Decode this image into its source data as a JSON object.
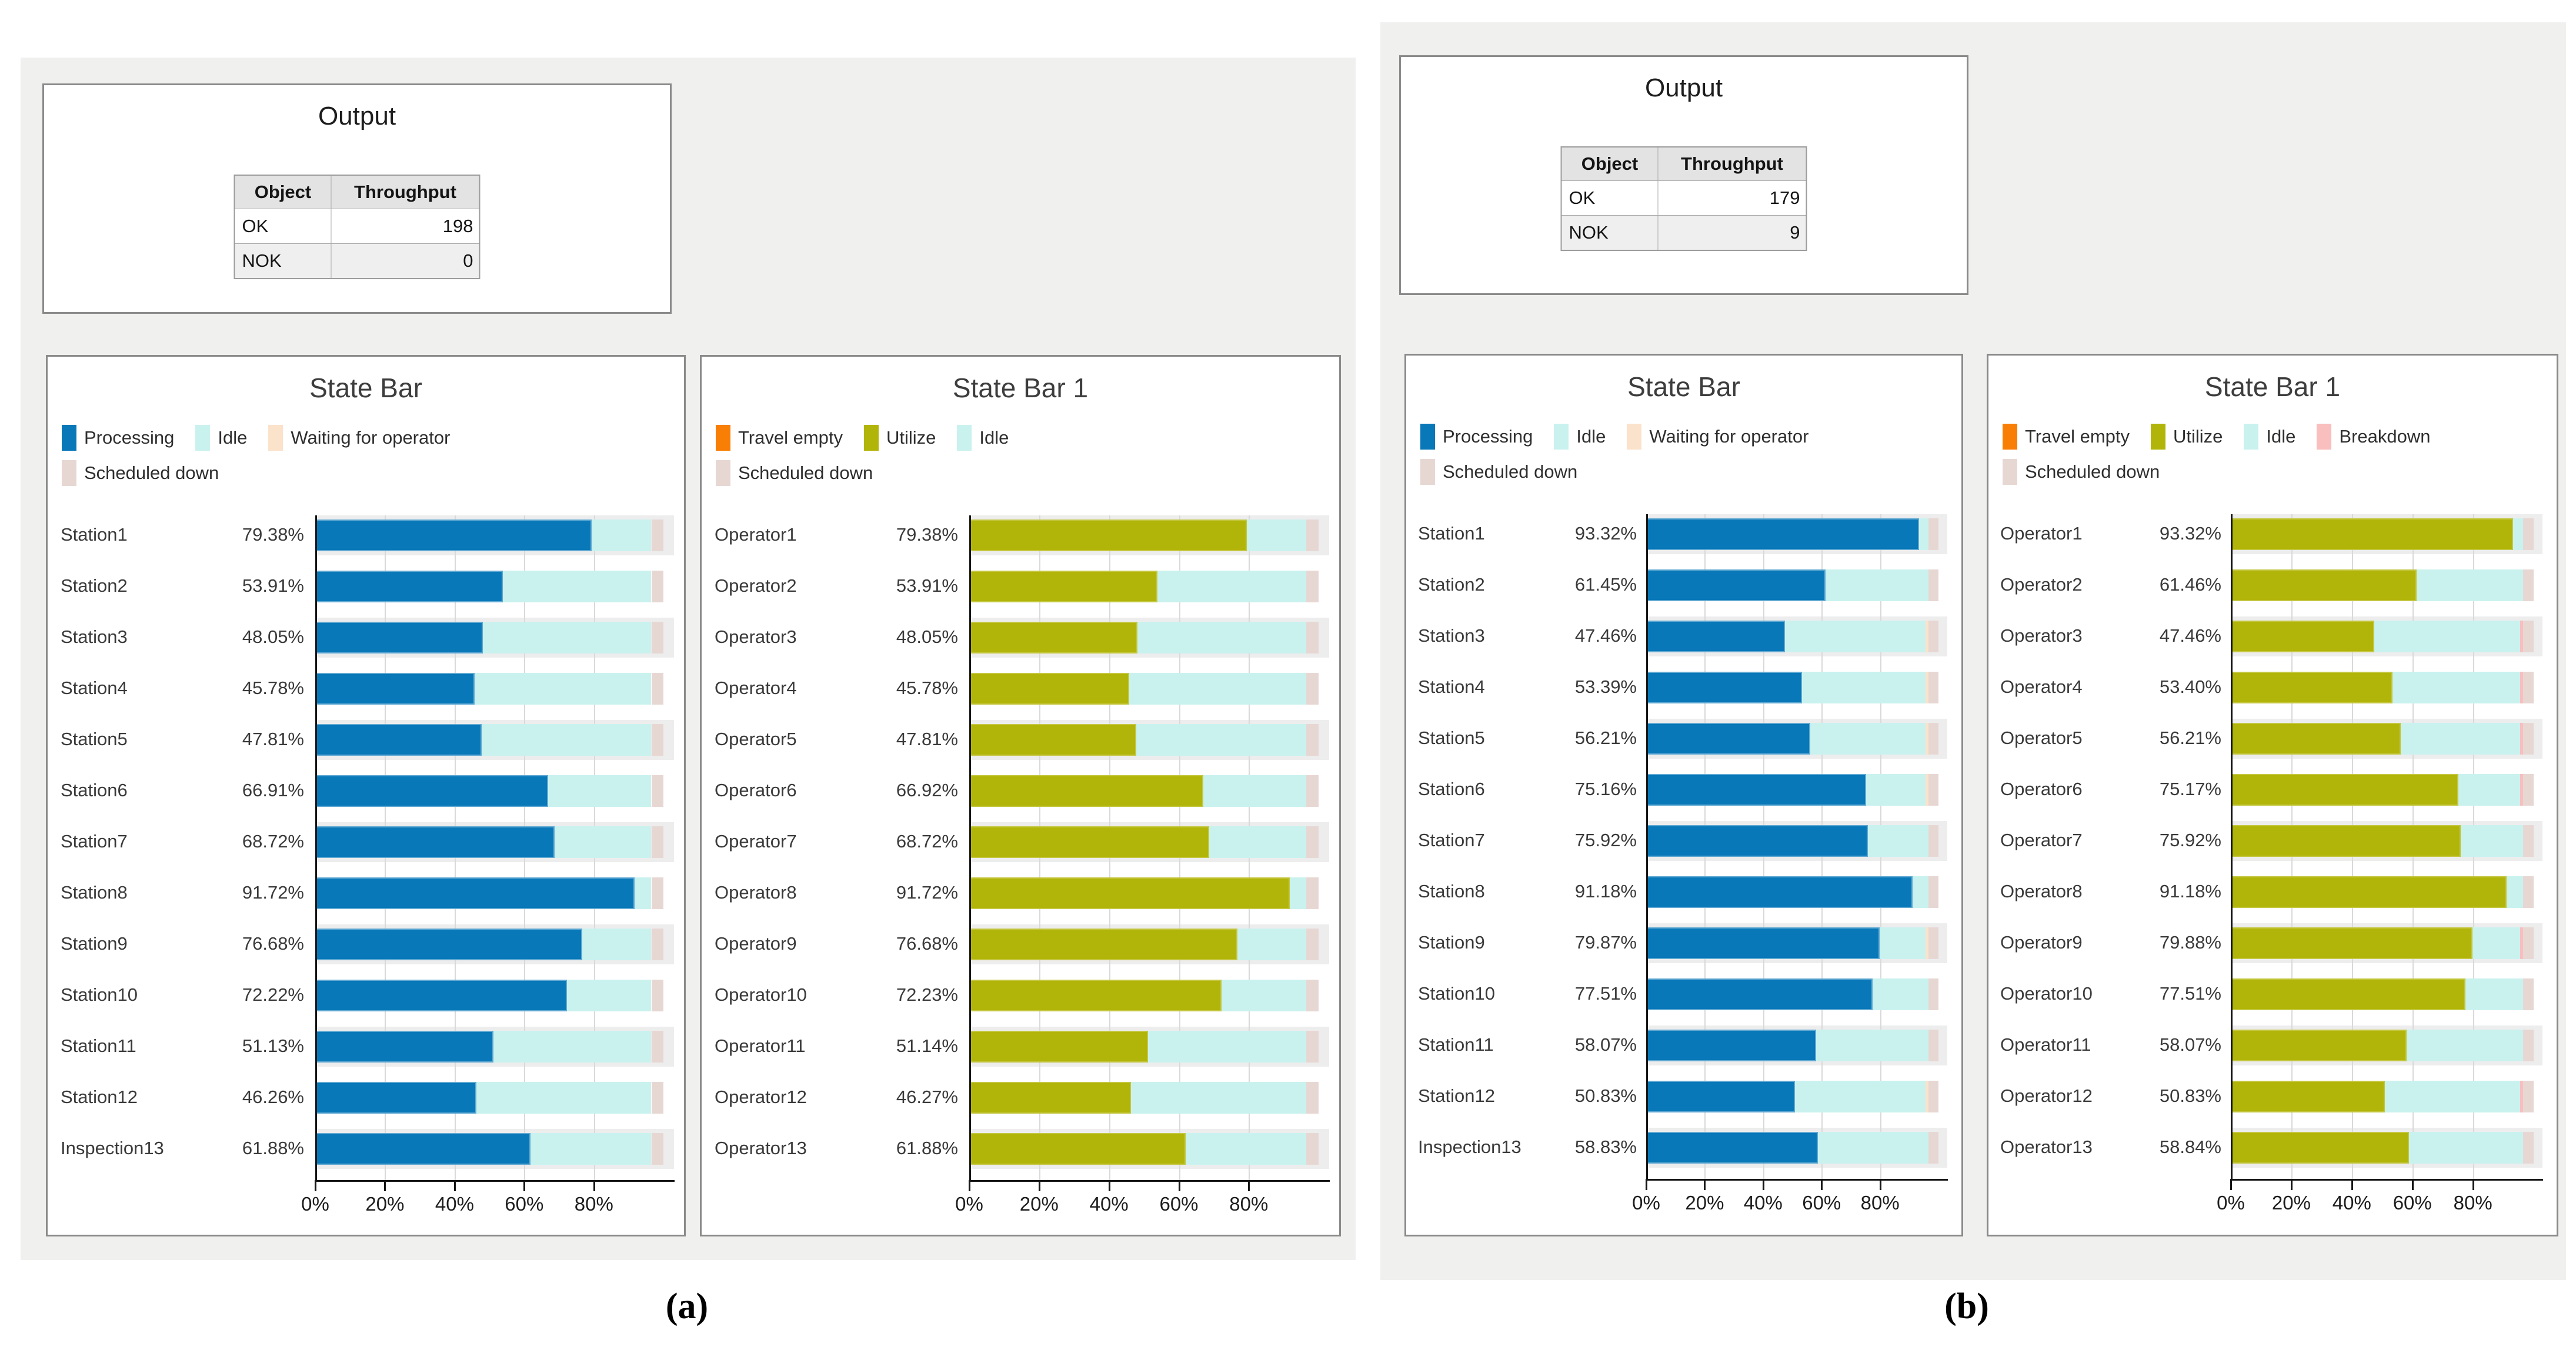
{
  "captions": {
    "a": "(a)",
    "b": "(b)"
  },
  "state_colors": {
    "processing": "#0878b8",
    "idle": "#c9f2ef",
    "waiting": "#fbe2cb",
    "scheduled": "#e7d7d3",
    "travel": "#f87e05",
    "utilize": "#b2b509",
    "breakdown": "#f9bebe"
  },
  "state_borders": {
    "processing": "#5fa8d2",
    "utilize": "#c3c63e"
  },
  "panels": [
    {
      "id": "a",
      "output": {
        "title": "Output",
        "columns": [
          "Object",
          "Throughput"
        ],
        "rows": [
          {
            "object": "OK",
            "throughput": "198"
          },
          {
            "object": "NOK",
            "throughput": "0"
          }
        ]
      }
    },
    {
      "id": "b",
      "output": {
        "title": "Output",
        "columns": [
          "Object",
          "Throughput"
        ],
        "rows": [
          {
            "object": "OK",
            "throughput": "179"
          },
          {
            "object": "NOK",
            "throughput": "9"
          }
        ]
      }
    }
  ],
  "chart_data": [
    {
      "type": "bar",
      "orientation": "horizontal",
      "panel": "a",
      "title": "State Bar",
      "legend": [
        {
          "label": "Processing",
          "state": "processing"
        },
        {
          "label": "Idle",
          "state": "idle"
        },
        {
          "label": "Waiting for operator",
          "state": "waiting"
        },
        {
          "label": "Scheduled down",
          "state": "scheduled"
        }
      ],
      "x_ticks": [
        0,
        20,
        40,
        60,
        80
      ],
      "x_tick_labels": [
        "0%",
        "20%",
        "40%",
        "60%",
        "80%"
      ],
      "axis_max_pct": 103,
      "grid": true,
      "categories": [
        "Station1",
        "Station2",
        "Station3",
        "Station4",
        "Station5",
        "Station6",
        "Station7",
        "Station8",
        "Station9",
        "Station10",
        "Station11",
        "Station12",
        "Inspection13"
      ],
      "value_labels": [
        "79.38%",
        "53.91%",
        "48.05%",
        "45.78%",
        "47.81%",
        "66.91%",
        "68.72%",
        "91.72%",
        "76.68%",
        "72.22%",
        "51.13%",
        "46.26%",
        "61.88%"
      ],
      "series": [
        {
          "name": "Processing",
          "state": "processing",
          "values": [
            79.38,
            53.91,
            48.05,
            45.78,
            47.81,
            66.91,
            68.72,
            91.72,
            76.68,
            72.22,
            51.13,
            46.26,
            61.88
          ]
        },
        {
          "name": "Idle",
          "state": "idle",
          "values": [
            17.12,
            42.59,
            48.45,
            50.72,
            48.69,
            29.59,
            27.78,
            4.78,
            19.82,
            24.28,
            45.37,
            50.24,
            34.62
          ]
        },
        {
          "name": "Waiting for operator",
          "state": "waiting",
          "values": [
            0,
            0,
            0,
            0,
            0,
            0,
            0,
            0,
            0,
            0,
            0,
            0,
            0
          ]
        },
        {
          "name": "Scheduled down",
          "state": "scheduled",
          "values": [
            3.5,
            3.5,
            3.5,
            3.5,
            3.5,
            3.5,
            3.5,
            3.5,
            3.5,
            3.5,
            3.5,
            3.5,
            3.5
          ]
        }
      ]
    },
    {
      "type": "bar",
      "orientation": "horizontal",
      "panel": "a",
      "title": "State Bar 1",
      "legend": [
        {
          "label": "Travel empty",
          "state": "travel"
        },
        {
          "label": "Utilize",
          "state": "utilize"
        },
        {
          "label": "Idle",
          "state": "idle"
        },
        {
          "label": "Scheduled down",
          "state": "scheduled"
        }
      ],
      "x_ticks": [
        0,
        20,
        40,
        60,
        80
      ],
      "x_tick_labels": [
        "0%",
        "20%",
        "40%",
        "60%",
        "80%"
      ],
      "axis_max_pct": 103,
      "grid": true,
      "categories": [
        "Operator1",
        "Operator2",
        "Operator3",
        "Operator4",
        "Operator5",
        "Operator6",
        "Operator7",
        "Operator8",
        "Operator9",
        "Operator10",
        "Operator11",
        "Operator12",
        "Operator13"
      ],
      "value_labels": [
        "79.38%",
        "53.91%",
        "48.05%",
        "45.78%",
        "47.81%",
        "66.92%",
        "68.72%",
        "91.72%",
        "76.68%",
        "72.23%",
        "51.14%",
        "46.27%",
        "61.88%"
      ],
      "series": [
        {
          "name": "Travel empty",
          "state": "travel",
          "values": [
            0,
            0,
            0,
            0,
            0,
            0,
            0,
            0,
            0,
            0,
            0,
            0,
            0
          ]
        },
        {
          "name": "Utilize",
          "state": "utilize",
          "values": [
            79.38,
            53.91,
            48.05,
            45.78,
            47.81,
            66.92,
            68.72,
            91.72,
            76.68,
            72.23,
            51.14,
            46.27,
            61.88
          ]
        },
        {
          "name": "Idle",
          "state": "idle",
          "values": [
            17.12,
            42.59,
            48.45,
            50.72,
            48.69,
            29.58,
            27.78,
            4.78,
            19.82,
            24.27,
            45.36,
            50.23,
            34.62
          ]
        },
        {
          "name": "Scheduled down",
          "state": "scheduled",
          "values": [
            3.5,
            3.5,
            3.5,
            3.5,
            3.5,
            3.5,
            3.5,
            3.5,
            3.5,
            3.5,
            3.5,
            3.5,
            3.5
          ]
        }
      ]
    },
    {
      "type": "bar",
      "orientation": "horizontal",
      "panel": "b",
      "title": "State Bar",
      "legend": [
        {
          "label": "Processing",
          "state": "processing"
        },
        {
          "label": "Idle",
          "state": "idle"
        },
        {
          "label": "Waiting for operator",
          "state": "waiting"
        },
        {
          "label": "Scheduled down",
          "state": "scheduled"
        }
      ],
      "x_ticks": [
        0,
        20,
        40,
        60,
        80
      ],
      "x_tick_labels": [
        "0%",
        "20%",
        "40%",
        "60%",
        "80%"
      ],
      "axis_max_pct": 103,
      "grid": true,
      "categories": [
        "Station1",
        "Station2",
        "Station3",
        "Station4",
        "Station5",
        "Station6",
        "Station7",
        "Station8",
        "Station9",
        "Station10",
        "Station11",
        "Station12",
        "Inspection13"
      ],
      "value_labels": [
        "93.32%",
        "61.45%",
        "47.46%",
        "53.39%",
        "56.21%",
        "75.16%",
        "75.92%",
        "91.18%",
        "79.87%",
        "77.51%",
        "58.07%",
        "50.83%",
        "58.83%"
      ],
      "series": [
        {
          "name": "Processing",
          "state": "processing",
          "values": [
            93.32,
            61.45,
            47.46,
            53.39,
            56.21,
            75.16,
            75.92,
            91.18,
            79.87,
            77.51,
            58.07,
            50.83,
            58.83
          ]
        },
        {
          "name": "Idle",
          "state": "idle",
          "values": [
            3.18,
            35.05,
            48.04,
            42.11,
            39.29,
            20.34,
            20.58,
            5.32,
            15.63,
            18.99,
            38.43,
            44.67,
            37.67
          ]
        },
        {
          "name": "Waiting for operator",
          "state": "waiting",
          "values": [
            0,
            0,
            1.0,
            1.0,
            1.0,
            1.0,
            0,
            0,
            1.0,
            0,
            0,
            1.0,
            0
          ]
        },
        {
          "name": "Scheduled down",
          "state": "scheduled",
          "values": [
            3.5,
            3.5,
            3.5,
            3.5,
            3.5,
            3.5,
            3.5,
            3.5,
            3.5,
            3.5,
            3.5,
            3.5,
            3.5
          ]
        }
      ]
    },
    {
      "type": "bar",
      "orientation": "horizontal",
      "panel": "b",
      "title": "State Bar 1",
      "legend": [
        {
          "label": "Travel empty",
          "state": "travel"
        },
        {
          "label": "Utilize",
          "state": "utilize"
        },
        {
          "label": "Idle",
          "state": "idle"
        },
        {
          "label": "Breakdown",
          "state": "breakdown"
        },
        {
          "label": "Scheduled down",
          "state": "scheduled"
        }
      ],
      "x_ticks": [
        0,
        20,
        40,
        60,
        80
      ],
      "x_tick_labels": [
        "0%",
        "20%",
        "40%",
        "60%",
        "80%"
      ],
      "axis_max_pct": 103,
      "grid": true,
      "categories": [
        "Operator1",
        "Operator2",
        "Operator3",
        "Operator4",
        "Operator5",
        "Operator6",
        "Operator7",
        "Operator8",
        "Operator9",
        "Operator10",
        "Operator11",
        "Operator12",
        "Operator13"
      ],
      "value_labels": [
        "93.32%",
        "61.46%",
        "47.46%",
        "53.40%",
        "56.21%",
        "75.17%",
        "75.92%",
        "91.18%",
        "79.88%",
        "77.51%",
        "58.07%",
        "50.83%",
        "58.84%"
      ],
      "series": [
        {
          "name": "Travel empty",
          "state": "travel",
          "values": [
            0,
            0,
            0,
            0,
            0,
            0,
            0,
            0,
            0,
            0,
            0,
            0,
            0
          ]
        },
        {
          "name": "Utilize",
          "state": "utilize",
          "values": [
            93.32,
            61.46,
            47.46,
            53.4,
            56.21,
            75.17,
            75.92,
            91.18,
            79.88,
            77.51,
            58.07,
            50.83,
            58.84
          ]
        },
        {
          "name": "Idle",
          "state": "idle",
          "values": [
            3.18,
            35.04,
            48.14,
            42.2,
            39.39,
            20.43,
            20.58,
            5.32,
            15.72,
            18.99,
            38.43,
            44.77,
            37.66
          ]
        },
        {
          "name": "Breakdown",
          "state": "breakdown",
          "values": [
            0,
            0,
            0.9,
            0.9,
            0.9,
            0.9,
            0,
            0,
            0.9,
            0,
            0,
            0.9,
            0
          ]
        },
        {
          "name": "Scheduled down",
          "state": "scheduled",
          "values": [
            3.5,
            3.5,
            3.5,
            3.5,
            3.5,
            3.5,
            3.5,
            3.5,
            3.5,
            3.5,
            3.5,
            3.5,
            3.5
          ]
        }
      ]
    }
  ]
}
